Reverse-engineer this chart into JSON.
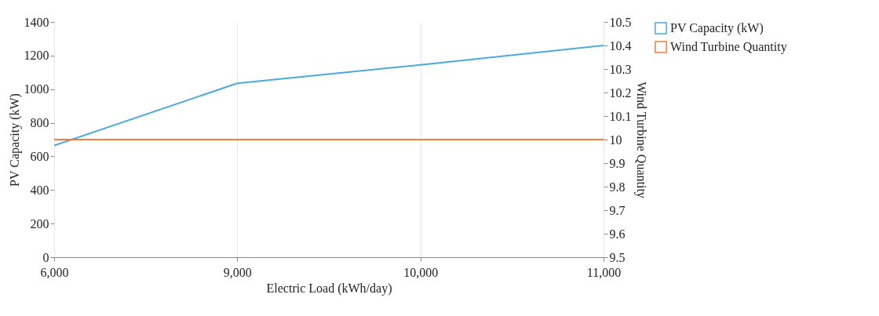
{
  "chart_data": {
    "type": "line",
    "xlabel": "Electric Load (kWh/day)",
    "ylabel": "PV Capacity (kW)",
    "y2label": "Wind Turbine Quantity",
    "categories": [
      "6,000",
      "9,000",
      "10,000",
      "11,000"
    ],
    "series": [
      {
        "name": "PV Capacity (kW)",
        "color": "#4aa9e0",
        "values": [
          665,
          1035,
          1145,
          1260
        ]
      },
      {
        "name": "Wind Turbine Quantity",
        "color": "#f07f3c",
        "values": [
          10,
          10,
          10,
          10
        ],
        "axis": "y2"
      }
    ],
    "ylim": [
      0,
      1400
    ],
    "yticks": [
      0,
      200,
      400,
      600,
      800,
      1000,
      1200,
      1400
    ],
    "y2lim": [
      9.5,
      10.5
    ],
    "y2ticks": [
      9.5,
      9.6,
      9.7,
      9.8,
      9.9,
      10,
      10.1,
      10.2,
      10.3,
      10.4,
      10.5
    ],
    "grid": "x",
    "legend": "top right",
    "marker": "none",
    "line_style": "solid"
  }
}
